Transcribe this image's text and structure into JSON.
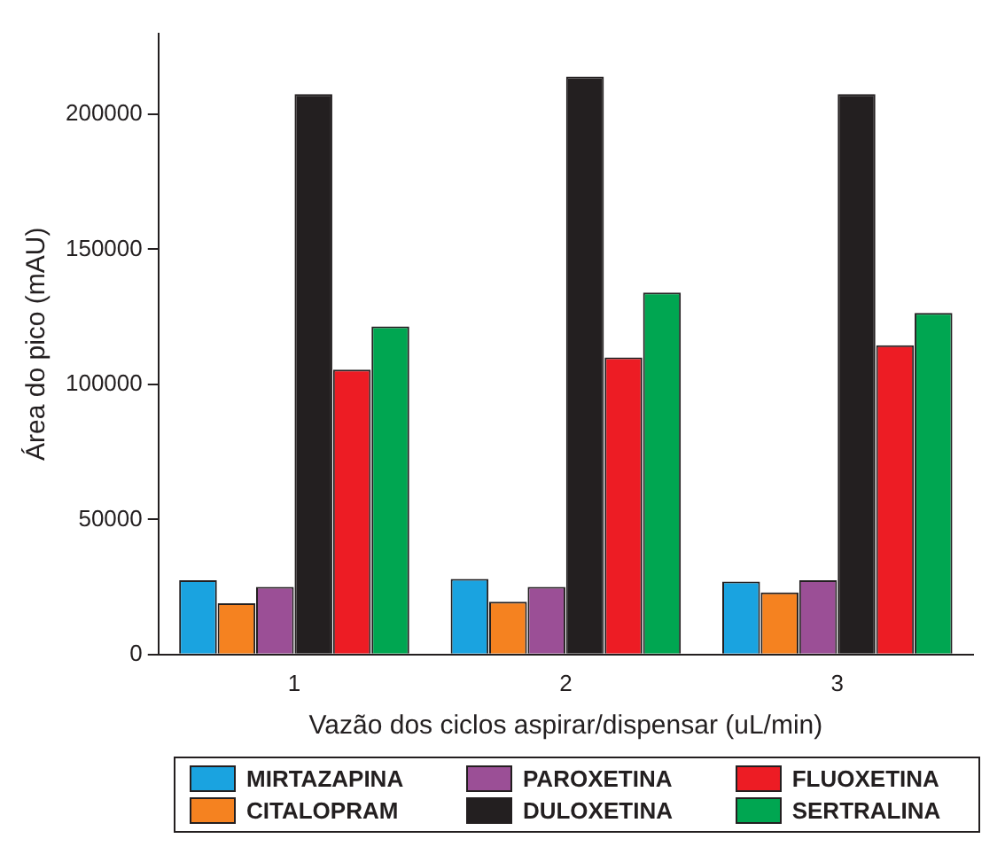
{
  "chart_data": {
    "type": "bar",
    "xlabel": "Vazão dos ciclos aspirar/dispensar (uL/min)",
    "ylabel": "Área do pico (mAU)",
    "categories": [
      "1",
      "2",
      "3"
    ],
    "ylim": [
      0,
      230000
    ],
    "yticks": [
      0,
      50000,
      100000,
      150000,
      200000
    ],
    "grid": false,
    "legend": "bottom",
    "series": [
      {
        "name": "MIRTAZAPINA",
        "color": "#1aa3e0",
        "values": [
          27500,
          28000,
          27000
        ]
      },
      {
        "name": "CITALOPRAM",
        "color": "#f58220",
        "values": [
          19000,
          19500,
          23000
        ]
      },
      {
        "name": "PAROXETINA",
        "color": "#9b4f96",
        "values": [
          25000,
          25000,
          27500
        ]
      },
      {
        "name": "DULOXETINA",
        "color": "#231f20",
        "values": [
          207500,
          214000,
          207500
        ]
      },
      {
        "name": "FLUOXETINA",
        "color": "#ed1c24",
        "values": [
          105500,
          110000,
          114500
        ]
      },
      {
        "name": "SERTRALINA",
        "color": "#00a651",
        "values": [
          121500,
          134000,
          126500
        ]
      }
    ]
  }
}
